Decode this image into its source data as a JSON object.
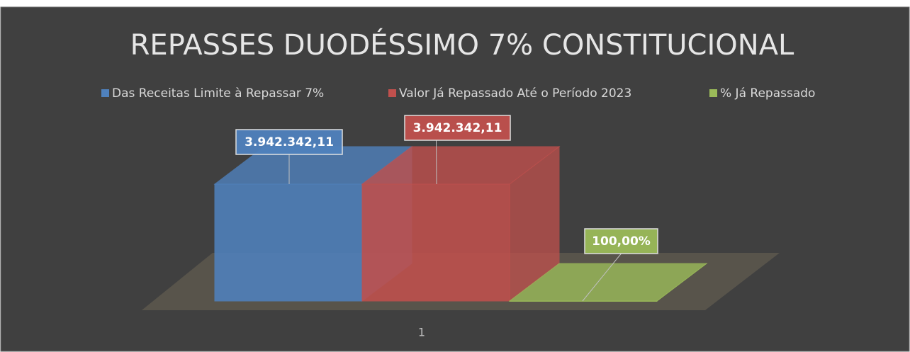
{
  "chart_data": {
    "type": "bar3d",
    "title": "REPASSES DUODÉSSIMO 7% CONSTITUCIONAL",
    "categories": [
      "1"
    ],
    "series": [
      {
        "name": "Das Receitas Limite à Repassar 7%",
        "color": "#4f81bd",
        "values": [
          3942342.11
        ],
        "value_labels": [
          "3.942.342,11"
        ]
      },
      {
        "name": "Valor Já Repassado Até o Período 2023",
        "color": "#c0504d",
        "values": [
          3942342.11
        ],
        "value_labels": [
          "3.942.342,11"
        ]
      },
      {
        "name": "% Já Repassado",
        "color": "#9bbb59",
        "values": [
          100
        ],
        "value_labels": [
          "100,00%"
        ]
      }
    ],
    "legend": "top"
  }
}
